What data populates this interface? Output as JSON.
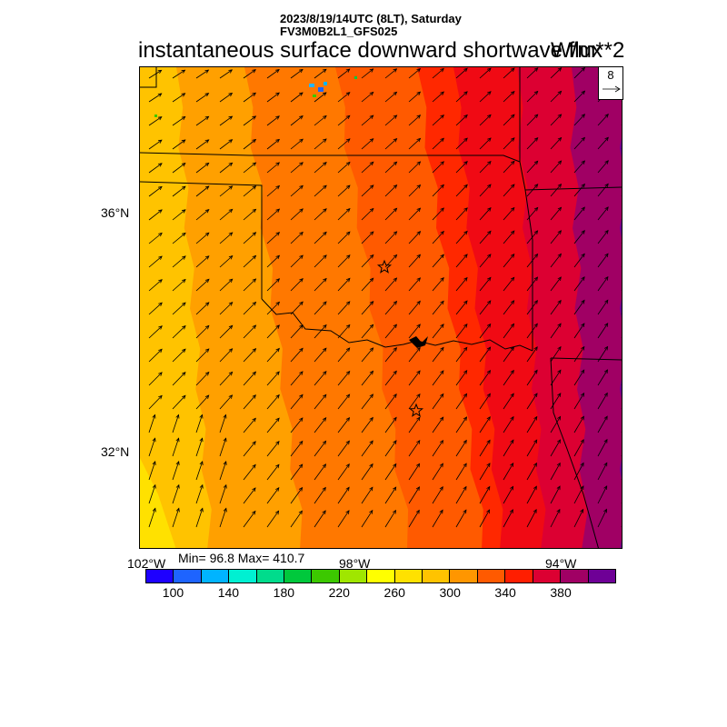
{
  "header": {
    "date_line": "2023/8/19/14UTC (8LT), Saturday",
    "model": "FV3M0B2L1_GFS025",
    "title": "instantaneous surface downward shortwave flux",
    "units": "W/m**2"
  },
  "axes": {
    "lat_labels": [
      "36°N",
      "32°N"
    ],
    "lon_labels": [
      "102°W",
      "98°W",
      "94°W"
    ]
  },
  "vector_reference": {
    "value": "8"
  },
  "stats": {
    "text": "Min= 96.8 Max= 410.7"
  },
  "colorbar": {
    "colors": [
      "#1e00ff",
      "#1e64ff",
      "#00b4ff",
      "#00f0d2",
      "#00dc8c",
      "#00c83c",
      "#3cc800",
      "#a0e600",
      "#ffff00",
      "#ffe100",
      "#ffc300",
      "#ff9600",
      "#ff5a00",
      "#ff1e00",
      "#dc0032",
      "#a00064",
      "#6e0096"
    ],
    "tick_labels": [
      "100",
      "140",
      "180",
      "220",
      "260",
      "300",
      "340",
      "380"
    ]
  },
  "field": {
    "bands_west_to_east": [
      "#ffc300",
      "#ffa000",
      "#ff7800",
      "#ff5a00",
      "#ff2800",
      "#f00a14",
      "#dc0032",
      "#a00064",
      "#6e0096"
    ]
  }
}
